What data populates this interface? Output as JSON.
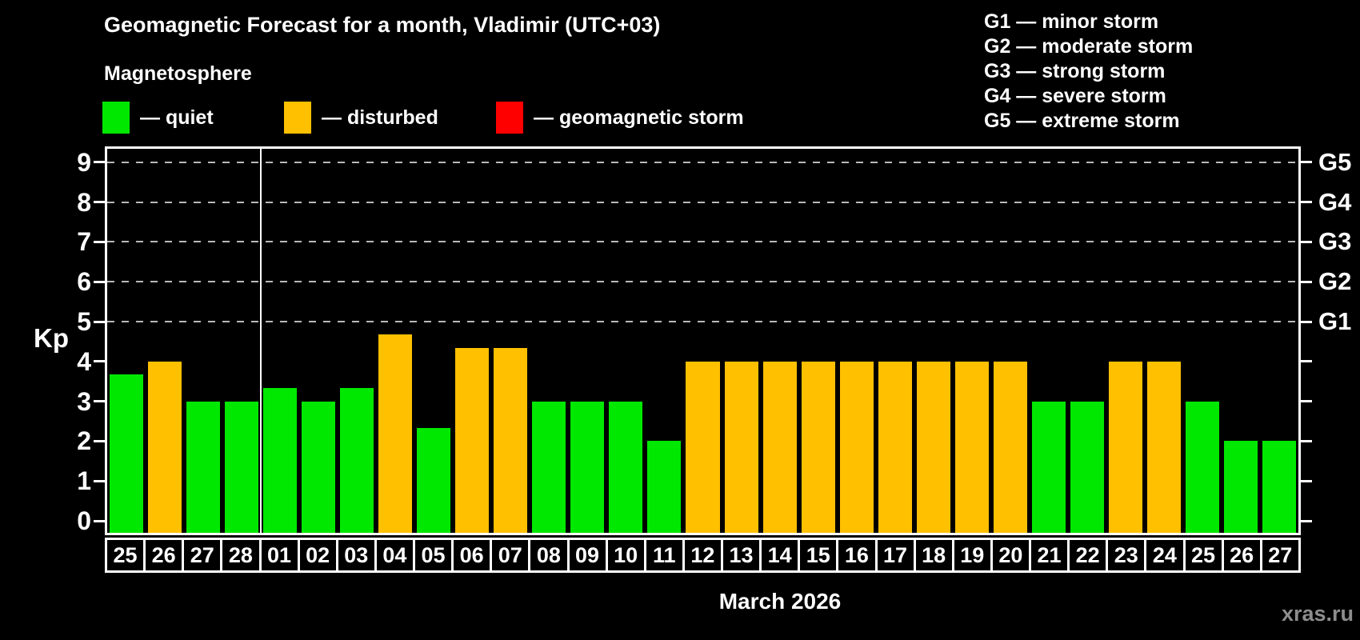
{
  "header": {
    "title": "Geomagnetic Forecast for a month, Vladimir (UTC+03)",
    "subtitle": "Magnetosphere"
  },
  "legend": {
    "items": [
      {
        "id": "quiet",
        "label": "— quiet",
        "color": "#00E800"
      },
      {
        "id": "disturbed",
        "label": "— disturbed",
        "color": "#FFC000"
      },
      {
        "id": "storm",
        "label": "— geomagnetic storm",
        "color": "#FF0000"
      }
    ]
  },
  "storm_scale": {
    "items": [
      {
        "label": "G1 — minor storm"
      },
      {
        "label": "G2 — moderate storm"
      },
      {
        "label": "G3 — strong storm"
      },
      {
        "label": "G4 — severe storm"
      },
      {
        "label": "G5 — extreme storm"
      }
    ]
  },
  "footer": {
    "month_label": "March 2026",
    "watermark": "xras.ru"
  },
  "chart_data": {
    "type": "bar",
    "title": "Geomagnetic Forecast for a month, Vladimir (UTC+03)",
    "ylabel": "Kp",
    "xlabel": "March 2026",
    "ylim": [
      0,
      9
    ],
    "yticks": [
      0,
      1,
      2,
      3,
      4,
      5,
      6,
      7,
      8,
      9
    ],
    "gridlines_at_kp": [
      5,
      6,
      7,
      8,
      9
    ],
    "grid": "dashed horizontal lines at storm levels only",
    "legend_position": "top-left",
    "right_axis": [
      {
        "label": "G1",
        "kp": 5
      },
      {
        "label": "G2",
        "kp": 6
      },
      {
        "label": "G3",
        "kp": 7
      },
      {
        "label": "G4",
        "kp": 8
      },
      {
        "label": "G5",
        "kp": 9
      }
    ],
    "status_colors": {
      "quiet": "#00E800",
      "disturbed": "#FFC000",
      "storm": "#FF0000"
    },
    "month_separator_after_index": 3,
    "days": [
      {
        "date": "25",
        "kp": 3.67,
        "status": "quiet"
      },
      {
        "date": "26",
        "kp": 4.0,
        "status": "disturbed"
      },
      {
        "date": "27",
        "kp": 3.0,
        "status": "quiet"
      },
      {
        "date": "28",
        "kp": 3.0,
        "status": "quiet"
      },
      {
        "date": "01",
        "kp": 3.33,
        "status": "quiet"
      },
      {
        "date": "02",
        "kp": 3.0,
        "status": "quiet"
      },
      {
        "date": "03",
        "kp": 3.33,
        "status": "quiet"
      },
      {
        "date": "04",
        "kp": 4.67,
        "status": "disturbed"
      },
      {
        "date": "05",
        "kp": 2.33,
        "status": "quiet"
      },
      {
        "date": "06",
        "kp": 4.33,
        "status": "disturbed"
      },
      {
        "date": "07",
        "kp": 4.33,
        "status": "disturbed"
      },
      {
        "date": "08",
        "kp": 3.0,
        "status": "quiet"
      },
      {
        "date": "09",
        "kp": 3.0,
        "status": "quiet"
      },
      {
        "date": "10",
        "kp": 3.0,
        "status": "quiet"
      },
      {
        "date": "11",
        "kp": 2.0,
        "status": "quiet"
      },
      {
        "date": "12",
        "kp": 4.0,
        "status": "disturbed"
      },
      {
        "date": "13",
        "kp": 4.0,
        "status": "disturbed"
      },
      {
        "date": "14",
        "kp": 4.0,
        "status": "disturbed"
      },
      {
        "date": "15",
        "kp": 4.0,
        "status": "disturbed"
      },
      {
        "date": "16",
        "kp": 4.0,
        "status": "disturbed"
      },
      {
        "date": "17",
        "kp": 4.0,
        "status": "disturbed"
      },
      {
        "date": "18",
        "kp": 4.0,
        "status": "disturbed"
      },
      {
        "date": "19",
        "kp": 4.0,
        "status": "disturbed"
      },
      {
        "date": "20",
        "kp": 4.0,
        "status": "disturbed"
      },
      {
        "date": "21",
        "kp": 3.0,
        "status": "quiet"
      },
      {
        "date": "22",
        "kp": 3.0,
        "status": "quiet"
      },
      {
        "date": "23",
        "kp": 4.0,
        "status": "disturbed"
      },
      {
        "date": "24",
        "kp": 4.0,
        "status": "disturbed"
      },
      {
        "date": "25",
        "kp": 3.0,
        "status": "quiet"
      },
      {
        "date": "26",
        "kp": 2.0,
        "status": "quiet"
      },
      {
        "date": "27",
        "kp": 2.0,
        "status": "quiet"
      }
    ]
  }
}
